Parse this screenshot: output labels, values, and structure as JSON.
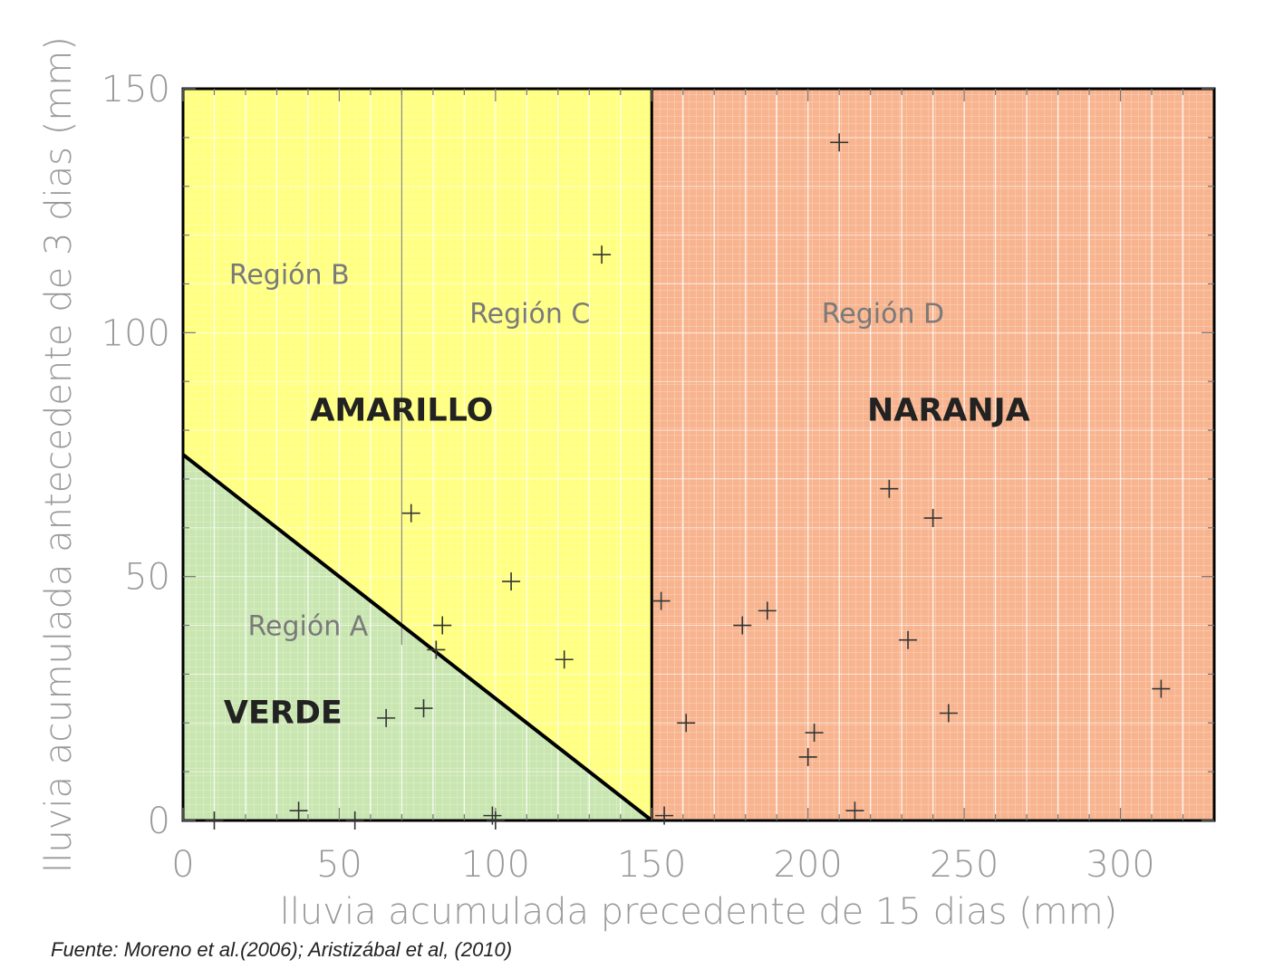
{
  "chart_data": {
    "type": "scatter",
    "xlabel": "lluvia acumulada precedente de 15 dias (mm)",
    "ylabel": "lluvia acumulada antecedente de 3 dias (mm)",
    "xlim": [
      0,
      330
    ],
    "ylim": [
      0,
      150
    ],
    "x_ticks": [
      0,
      50,
      100,
      150,
      200,
      250,
      300
    ],
    "y_ticks": [
      0,
      50,
      100,
      150
    ],
    "grid": true,
    "threshold_line": {
      "x": [
        0,
        150
      ],
      "y": [
        75,
        0
      ]
    },
    "vertical_divider": 150,
    "secondary_divider": 70,
    "regions": [
      {
        "name": "Región A",
        "x": 40,
        "y": 38
      },
      {
        "name": "Región B",
        "x": 34,
        "y": 110
      },
      {
        "name": "Región C",
        "x": 111,
        "y": 102
      },
      {
        "name": "Región D",
        "x": 224,
        "y": 102
      }
    ],
    "zones": [
      {
        "name": "VERDE",
        "x": 32,
        "y": 20,
        "color": "#c9e6b0"
      },
      {
        "name": "AMARILLO",
        "x": 70,
        "y": 82,
        "color": "#ffff80"
      },
      {
        "name": "NARANJA",
        "x": 245,
        "y": 82,
        "color": "#f7b48e"
      }
    ],
    "points": [
      {
        "x": 10,
        "y": 0
      },
      {
        "x": 37,
        "y": 2
      },
      {
        "x": 55,
        "y": 0
      },
      {
        "x": 65,
        "y": 21
      },
      {
        "x": 77,
        "y": 23
      },
      {
        "x": 73,
        "y": 63
      },
      {
        "x": 81,
        "y": 35
      },
      {
        "x": 83,
        "y": 40
      },
      {
        "x": 99,
        "y": 1
      },
      {
        "x": 100,
        "y": 0
      },
      {
        "x": 105,
        "y": 49
      },
      {
        "x": 122,
        "y": 33
      },
      {
        "x": 134,
        "y": 116
      },
      {
        "x": 153,
        "y": 45
      },
      {
        "x": 154,
        "y": 1
      },
      {
        "x": 161,
        "y": 20
      },
      {
        "x": 179,
        "y": 40
      },
      {
        "x": 187,
        "y": 43
      },
      {
        "x": 200,
        "y": 13
      },
      {
        "x": 202,
        "y": 18
      },
      {
        "x": 210,
        "y": 139
      },
      {
        "x": 215,
        "y": 2
      },
      {
        "x": 226,
        "y": 68
      },
      {
        "x": 232,
        "y": 37
      },
      {
        "x": 240,
        "y": 62
      },
      {
        "x": 245,
        "y": 22
      },
      {
        "x": 313,
        "y": 27
      }
    ]
  },
  "caption": "Fuente: Moreno et al.(2006); Aristizábal et al, (2010)"
}
